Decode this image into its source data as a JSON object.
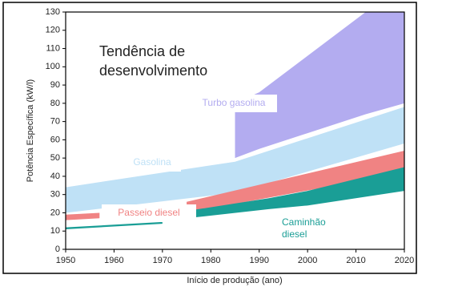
{
  "chart_data": {
    "type": "band",
    "annotation": [
      "Tendência de",
      "desenvolvimento"
    ],
    "x_label": "Início de produção (ano)",
    "y_label": "Potência Específica (kW/l)",
    "xlim": [
      1950,
      2020
    ],
    "xticks": [
      1950,
      1960,
      1970,
      1980,
      1990,
      2000,
      2010,
      2020
    ],
    "ylim": [
      0,
      130
    ],
    "yticks": [
      0,
      10,
      20,
      30,
      40,
      50,
      60,
      70,
      80,
      90,
      100,
      110,
      120,
      130
    ],
    "series": [
      {
        "name": "Turbo gasolina",
        "color": "#b3acf0",
        "x": [
          1985,
          1990,
          2012,
          2020
        ],
        "low": [
          50,
          55,
          74,
          80
        ],
        "high": [
          80,
          86,
          130,
          130
        ]
      },
      {
        "name": "Gasolina",
        "color": "#bfe1f6",
        "x": [
          1950,
          1985,
          2020
        ],
        "low": [
          20,
          31,
          58
        ],
        "high": [
          34,
          48,
          78
        ]
      },
      {
        "name": "Passeio diesel",
        "color": "#f08383",
        "x": [
          1950,
          1957,
          1966,
          1975,
          2020
        ],
        "low": [
          16,
          17,
          null,
          20,
          42
        ],
        "high": [
          19,
          20,
          null,
          26,
          54
        ]
      },
      {
        "name": [
          "Caminhão",
          "diesel"
        ],
        "color": "#1a9e96",
        "x": [
          1950,
          1970,
          1972,
          1975,
          1992,
          2000,
          2020
        ],
        "low": [
          11,
          14,
          null,
          17,
          22,
          24,
          32
        ],
        "high": [
          12,
          15,
          null,
          21,
          28,
          32,
          45
        ]
      }
    ]
  }
}
